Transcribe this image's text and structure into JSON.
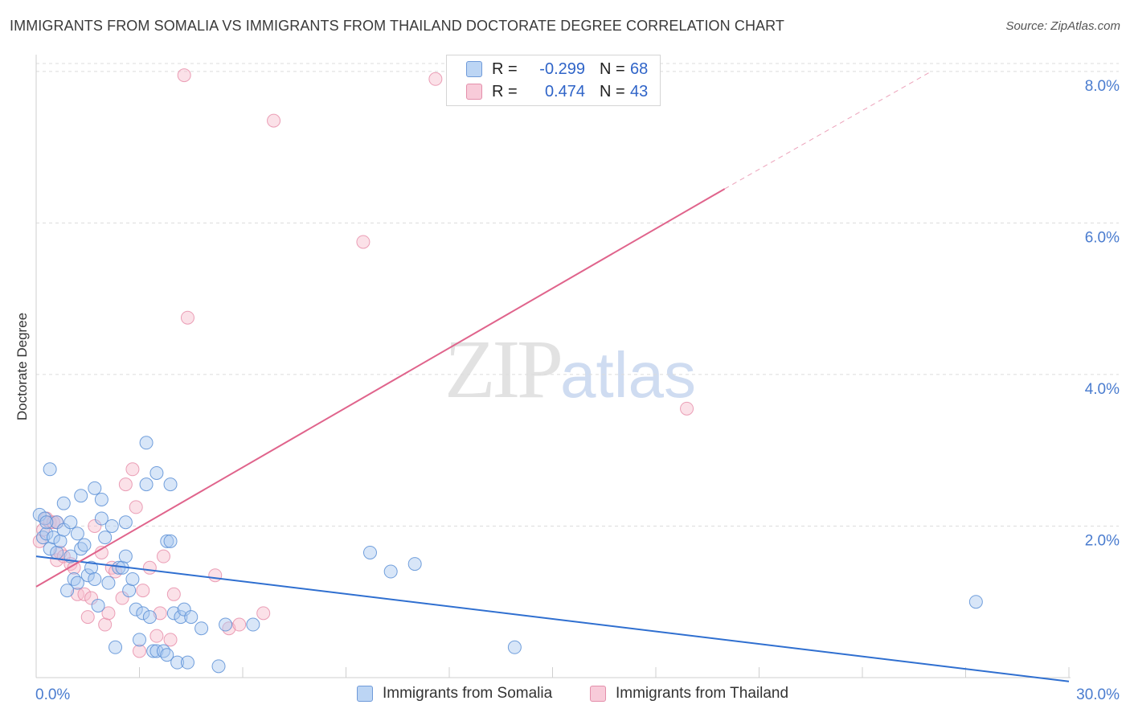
{
  "header": {
    "title": "IMMIGRANTS FROM SOMALIA VS IMMIGRANTS FROM THAILAND DOCTORATE DEGREE CORRELATION CHART",
    "source": "Source: ZipAtlas.com"
  },
  "watermark": {
    "zip": "ZIP",
    "atlas": "atlas"
  },
  "legend": {
    "rows": [
      {
        "r_label": "R =",
        "r_value": "-0.299",
        "n_label": "N =",
        "n_value": "68"
      },
      {
        "r_label": "R =",
        "r_value": "0.474",
        "n_label": "N =",
        "n_value": "43"
      }
    ]
  },
  "colors": {
    "somalia_fill": "#a8c8f0",
    "somalia_stroke": "#5b8fd6",
    "somalia_line": "#2f6fd0",
    "thailand_fill": "#f6bccd",
    "thailand_stroke": "#e68aa6",
    "thailand_line": "#e0648c",
    "grid": "#dcdcdc",
    "tick_text": "#4a7ccf"
  },
  "chart_data": {
    "type": "scatter",
    "title": "IMMIGRANTS FROM SOMALIA VS IMMIGRANTS FROM THAILAND DOCTORATE DEGREE CORRELATION CHART",
    "xlabel": "",
    "ylabel": "Doctorate Degree",
    "xlim": [
      0,
      30
    ],
    "ylim": [
      0,
      8.2
    ],
    "x_ticks": [
      0,
      30
    ],
    "x_tick_labels": [
      "0.0%",
      "30.0%"
    ],
    "y_ticks": [
      2,
      4,
      6,
      8
    ],
    "y_tick_labels": [
      "2.0%",
      "4.0%",
      "6.0%",
      "8.0%"
    ],
    "grid": true,
    "legend_position": "top-center",
    "series": [
      {
        "name": "Immigrants from Somalia",
        "R": -0.299,
        "N": 68,
        "trend": {
          "x": [
            0,
            30
          ],
          "y": [
            1.6,
            -0.05
          ]
        },
        "points": [
          [
            0.1,
            2.15
          ],
          [
            0.2,
            1.85
          ],
          [
            0.25,
            2.1
          ],
          [
            0.3,
            1.9
          ],
          [
            0.4,
            1.7
          ],
          [
            0.4,
            2.75
          ],
          [
            0.5,
            1.85
          ],
          [
            0.6,
            2.05
          ],
          [
            0.6,
            1.65
          ],
          [
            0.7,
            1.8
          ],
          [
            0.8,
            1.95
          ],
          [
            0.8,
            2.3
          ],
          [
            0.9,
            1.15
          ],
          [
            1.0,
            2.05
          ],
          [
            1.0,
            1.6
          ],
          [
            1.1,
            1.3
          ],
          [
            1.2,
            1.25
          ],
          [
            1.2,
            1.9
          ],
          [
            1.3,
            2.4
          ],
          [
            1.3,
            1.7
          ],
          [
            1.4,
            1.75
          ],
          [
            1.5,
            1.35
          ],
          [
            1.6,
            1.45
          ],
          [
            1.7,
            2.5
          ],
          [
            1.7,
            1.3
          ],
          [
            1.8,
            0.95
          ],
          [
            1.9,
            2.35
          ],
          [
            1.9,
            2.1
          ],
          [
            2.0,
            1.85
          ],
          [
            2.1,
            1.25
          ],
          [
            2.2,
            2.0
          ],
          [
            2.3,
            0.4
          ],
          [
            2.4,
            1.45
          ],
          [
            2.5,
            1.45
          ],
          [
            2.6,
            2.05
          ],
          [
            2.6,
            1.6
          ],
          [
            2.7,
            1.15
          ],
          [
            2.8,
            1.3
          ],
          [
            2.9,
            0.9
          ],
          [
            3.0,
            0.5
          ],
          [
            3.1,
            0.85
          ],
          [
            3.2,
            3.1
          ],
          [
            3.2,
            2.55
          ],
          [
            3.3,
            0.8
          ],
          [
            3.4,
            0.35
          ],
          [
            3.5,
            0.35
          ],
          [
            3.5,
            2.7
          ],
          [
            3.7,
            0.35
          ],
          [
            3.8,
            0.3
          ],
          [
            3.8,
            1.8
          ],
          [
            3.9,
            1.8
          ],
          [
            3.9,
            2.55
          ],
          [
            4.0,
            0.85
          ],
          [
            4.1,
            0.2
          ],
          [
            4.2,
            0.8
          ],
          [
            4.3,
            0.9
          ],
          [
            4.4,
            0.2
          ],
          [
            4.5,
            0.8
          ],
          [
            4.8,
            0.65
          ],
          [
            5.3,
            0.15
          ],
          [
            5.5,
            0.7
          ],
          [
            6.3,
            0.7
          ],
          [
            9.7,
            1.65
          ],
          [
            10.3,
            1.4
          ],
          [
            11.0,
            1.5
          ],
          [
            13.9,
            0.4
          ],
          [
            27.3,
            1.0
          ],
          [
            0.3,
            2.05
          ]
        ]
      },
      {
        "name": "Immigrants from Thailand",
        "R": 0.474,
        "N": 43,
        "trend": {
          "x": [
            0,
            20
          ],
          "y": [
            1.2,
            6.45
          ]
        },
        "trend_dashed": {
          "x": [
            20,
            26
          ],
          "y": [
            6.45,
            8.0
          ]
        },
        "points": [
          [
            0.1,
            1.8
          ],
          [
            0.2,
            1.95
          ],
          [
            0.3,
            2.1
          ],
          [
            0.4,
            2.05
          ],
          [
            0.5,
            2.05
          ],
          [
            0.6,
            2.05
          ],
          [
            0.6,
            1.55
          ],
          [
            0.7,
            1.65
          ],
          [
            0.8,
            1.6
          ],
          [
            1.0,
            1.5
          ],
          [
            1.1,
            1.45
          ],
          [
            1.2,
            1.1
          ],
          [
            1.4,
            1.1
          ],
          [
            1.5,
            0.8
          ],
          [
            1.6,
            1.05
          ],
          [
            1.7,
            2.0
          ],
          [
            1.9,
            1.65
          ],
          [
            2.0,
            0.7
          ],
          [
            2.1,
            0.85
          ],
          [
            2.2,
            1.45
          ],
          [
            2.3,
            1.4
          ],
          [
            2.5,
            1.05
          ],
          [
            2.6,
            2.55
          ],
          [
            2.8,
            2.75
          ],
          [
            2.9,
            2.25
          ],
          [
            3.0,
            0.35
          ],
          [
            3.1,
            1.15
          ],
          [
            3.3,
            1.45
          ],
          [
            3.5,
            0.55
          ],
          [
            3.6,
            0.85
          ],
          [
            3.7,
            1.6
          ],
          [
            3.9,
            0.5
          ],
          [
            4.0,
            1.1
          ],
          [
            4.3,
            7.95
          ],
          [
            4.4,
            4.75
          ],
          [
            5.2,
            1.35
          ],
          [
            5.6,
            0.65
          ],
          [
            5.9,
            0.7
          ],
          [
            6.6,
            0.85
          ],
          [
            6.9,
            7.35
          ],
          [
            9.5,
            5.75
          ],
          [
            11.6,
            7.9
          ],
          [
            18.9,
            3.55
          ]
        ]
      }
    ]
  },
  "bottom_legend": {
    "items": [
      "Immigrants from Somalia",
      "Immigrants from Thailand"
    ]
  }
}
